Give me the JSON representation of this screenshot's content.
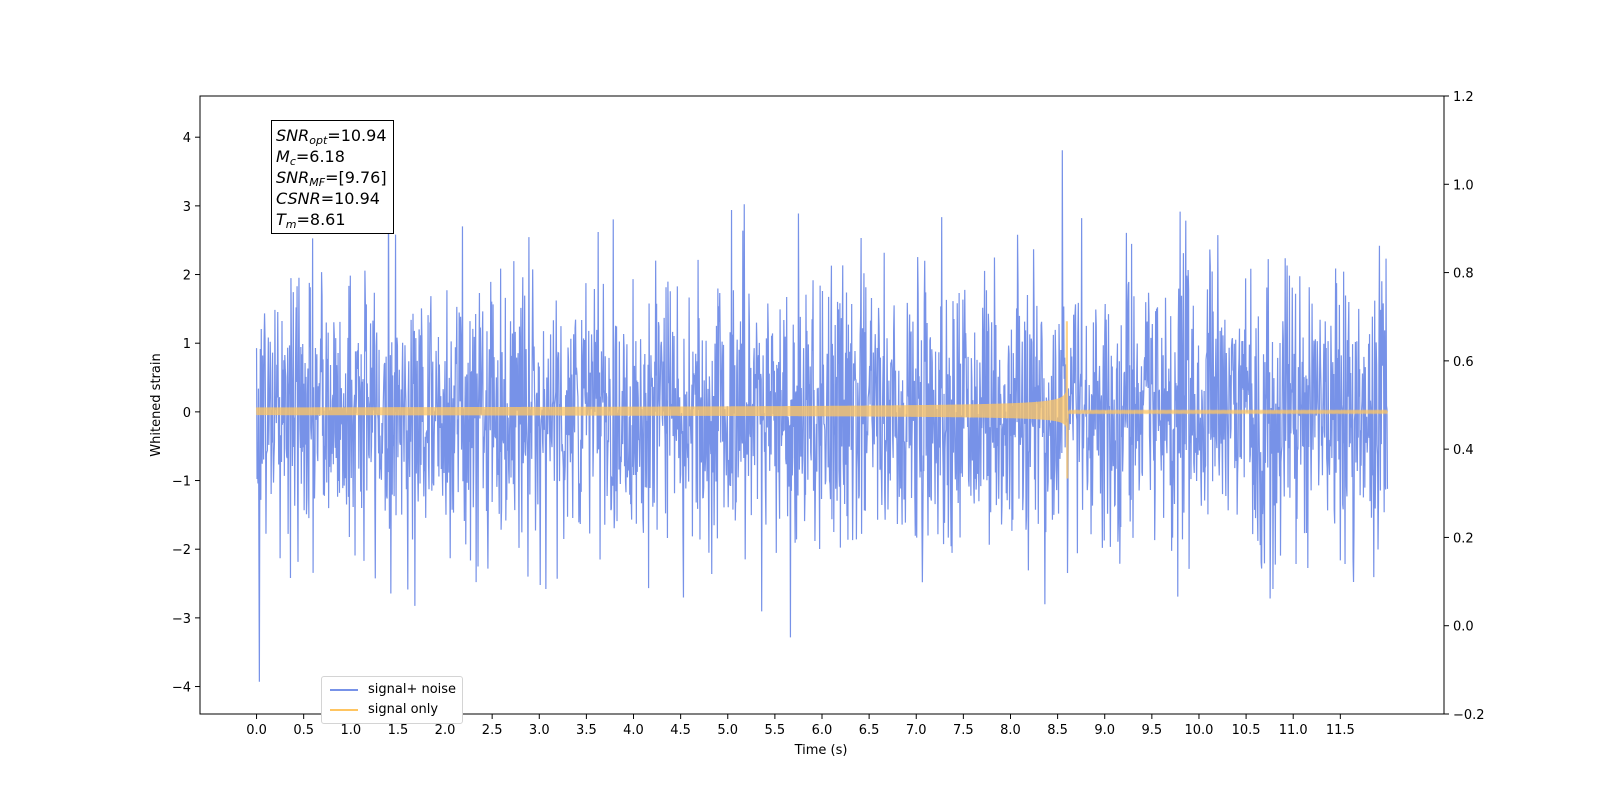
{
  "chart_data": {
    "type": "line",
    "xlabel": "Time (s)",
    "ylabel": "Whitened strain",
    "xlim": [
      -0.6,
      12.6
    ],
    "ylim": [
      -4.4,
      4.6
    ],
    "y2lim": [
      -0.2,
      1.2
    ],
    "x_ticks": [
      "0.0",
      "0.5",
      "1.0",
      "1.5",
      "2.0",
      "2.5",
      "3.0",
      "3.5",
      "4.0",
      "4.5",
      "5.0",
      "5.5",
      "6.0",
      "6.5",
      "7.0",
      "7.5",
      "8.0",
      "8.5",
      "9.0",
      "9.5",
      "10.0",
      "10.5",
      "11.0",
      "11.5"
    ],
    "y_ticks": [
      "4",
      "3",
      "2",
      "1",
      "0",
      "−1",
      "−2",
      "−3",
      "−4"
    ],
    "y2_ticks": [
      "1.2",
      "1.0",
      "0.8",
      "0.6",
      "0.4",
      "0.2",
      "0.0",
      "−0.2"
    ],
    "series": [
      {
        "name": "signal+ noise",
        "color": "#7792e8",
        "t_start": 0.0,
        "t_end": 12.0,
        "typical_amplitude": 1.0,
        "max": 3.81,
        "max_at": 8.55,
        "min": -3.93,
        "min_at": 0.03
      },
      {
        "name": "signal only",
        "color": "#ffc561",
        "t_start": 0.0,
        "t_end": 12.0,
        "merger_time": 8.61,
        "peak_positive": 1.32,
        "peak_negative": -0.97,
        "amplitude_at_start": 0.05
      }
    ],
    "annotation": [
      {
        "sym": "SNR",
        "sub": "opt",
        "val": "=10.94"
      },
      {
        "sym": "M",
        "sub": "c",
        "val": "=6.18"
      },
      {
        "sym": "SNR",
        "sub": "MF",
        "val": "=[9.76]"
      },
      {
        "sym": "CSNR",
        "sub": "",
        "val": "=10.94"
      },
      {
        "sym": "T",
        "sub": "m",
        "val": "=8.61"
      }
    ],
    "legend": {
      "placement": "lower-left",
      "items": [
        "signal+ noise",
        "signal only"
      ]
    },
    "grid": false
  }
}
